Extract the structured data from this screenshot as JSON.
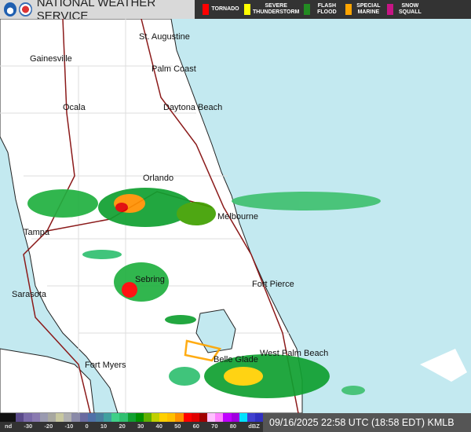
{
  "header": {
    "title": "NATIONAL WEATHER SERVICE",
    "warnings": [
      {
        "label": "TORNADO",
        "color": "#ff0000"
      },
      {
        "label": "SEVERE\nTHUNDERSTORM",
        "color": "#ffff00"
      },
      {
        "label": "FLASH\nFLOOD",
        "color": "#228b22"
      },
      {
        "label": "SPECIAL\nMARINE",
        "color": "#ffa500"
      },
      {
        "label": "SNOW\nSQUALL",
        "color": "#c71585"
      }
    ]
  },
  "cities": [
    "St. Augustine",
    "Gainesville",
    "Palm Coast",
    "Ocala",
    "Daytona Beach",
    "Orlando",
    "Melbourne",
    "Tampa",
    "Sebring",
    "Sarasota",
    "Fort Pierce",
    "West Palm Beach",
    "Belle Glade",
    "Fort Myers"
  ],
  "scale": {
    "ticks": [
      "nd",
      "-30",
      "-20",
      "-10",
      "0",
      "10",
      "20",
      "30",
      "40",
      "50",
      "60",
      "70",
      "80",
      "dBZ"
    ],
    "colors": [
      "#111",
      "#111",
      "#5a4a8a",
      "#7a6aa8",
      "#8a7ab0",
      "#9a9ab0",
      "#a8a8a0",
      "#c8c8a0",
      "#b0b0b0",
      "#8a8aa8",
      "#6a6aa0",
      "#5070a8",
      "#4a80a0",
      "#40a0a0",
      "#40d088",
      "#30c070",
      "#10a030",
      "#009000",
      "#60b000",
      "#c0d000",
      "#ffd000",
      "#ffc000",
      "#ff9000",
      "#ff0000",
      "#e00000",
      "#a00000",
      "#ffc0ff",
      "#ff80ff",
      "#c000ff",
      "#a000e0",
      "#00e0ff",
      "#4040d0",
      "#3030c0"
    ]
  },
  "timestamp": "09/16/2025 22:58 UTC (18:58 EDT)  KMLB"
}
